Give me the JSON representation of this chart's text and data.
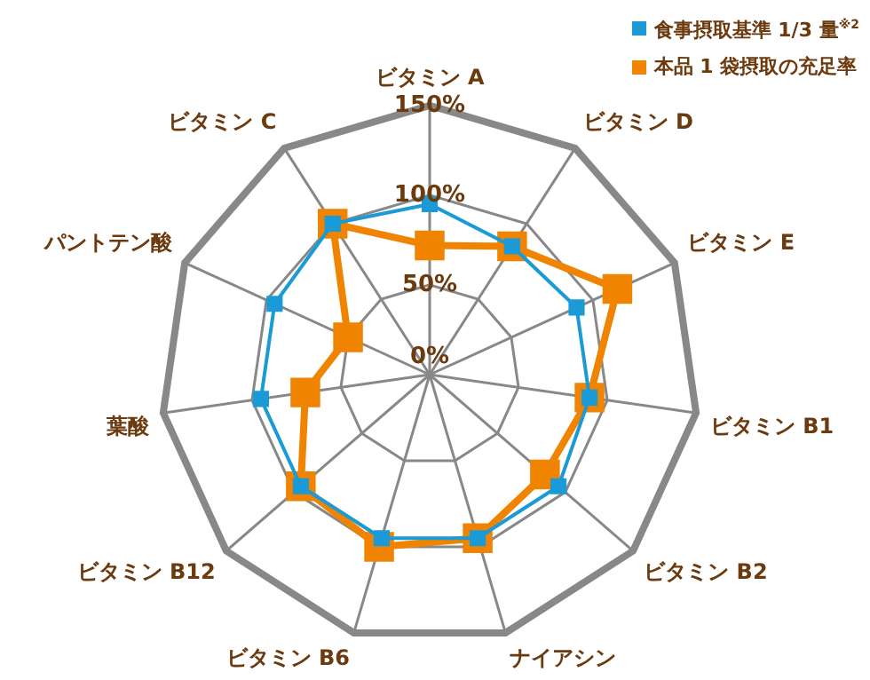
{
  "chart_data": {
    "type": "radar",
    "categories": [
      "ビタミン A",
      "ビタミン D",
      "ビタミン E",
      "ビタミン B1",
      "ビタミン B2",
      "ナイアシン",
      "ビタミン B6",
      "ビタミン B12",
      "葉酸",
      "パントテン酸",
      "ビタミン C"
    ],
    "series": [
      {
        "name": "食事摂取基準 1/3 量$^{※2}$",
        "color": "#1a9ad6",
        "values": [
          95,
          85,
          90,
          90,
          95,
          95,
          95,
          95,
          95,
          95,
          100
        ]
      },
      {
        "name": "本品 1 袋摂取の充足率",
        "color": "#f08300",
        "values": [
          72,
          85,
          115,
          90,
          85,
          95,
          100,
          95,
          70,
          50,
          100
        ]
      }
    ],
    "ylim": [
      0,
      150
    ],
    "yticks": [
      {
        "value": 0,
        "label": "0%"
      },
      {
        "value": 50,
        "label": "50%"
      },
      {
        "value": 100,
        "label": "100%"
      },
      {
        "value": 150,
        "label": "150%"
      }
    ],
    "grid": true,
    "legend": "top right",
    "marker": "square",
    "line_style": "solid"
  }
}
